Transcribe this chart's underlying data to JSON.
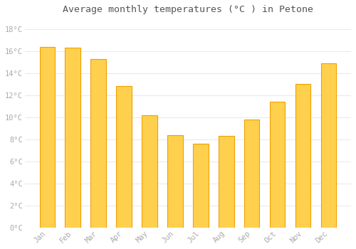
{
  "title": "Average monthly temperatures (°C ) in Petone",
  "months": [
    "Jan",
    "Feb",
    "Mar",
    "Apr",
    "May",
    "Jun",
    "Jul",
    "Aug",
    "Sep",
    "Oct",
    "Nov",
    "Dec"
  ],
  "values": [
    16.4,
    16.3,
    15.3,
    12.8,
    10.2,
    8.4,
    7.6,
    8.3,
    9.8,
    11.4,
    13.0,
    14.9
  ],
  "bar_color_center": "#FFD04D",
  "bar_color_edge": "#F0A000",
  "background_color": "#FFFFFF",
  "grid_color": "#E8E8E8",
  "text_color": "#AAAAAA",
  "title_color": "#555555",
  "ylim": [
    0,
    19
  ],
  "yticks": [
    0,
    2,
    4,
    6,
    8,
    10,
    12,
    14,
    16,
    18
  ],
  "ytick_labels": [
    "0°C",
    "2°C",
    "4°C",
    "6°C",
    "8°C",
    "10°C",
    "12°C",
    "14°C",
    "16°C",
    "18°C"
  ],
  "bar_width": 0.6
}
